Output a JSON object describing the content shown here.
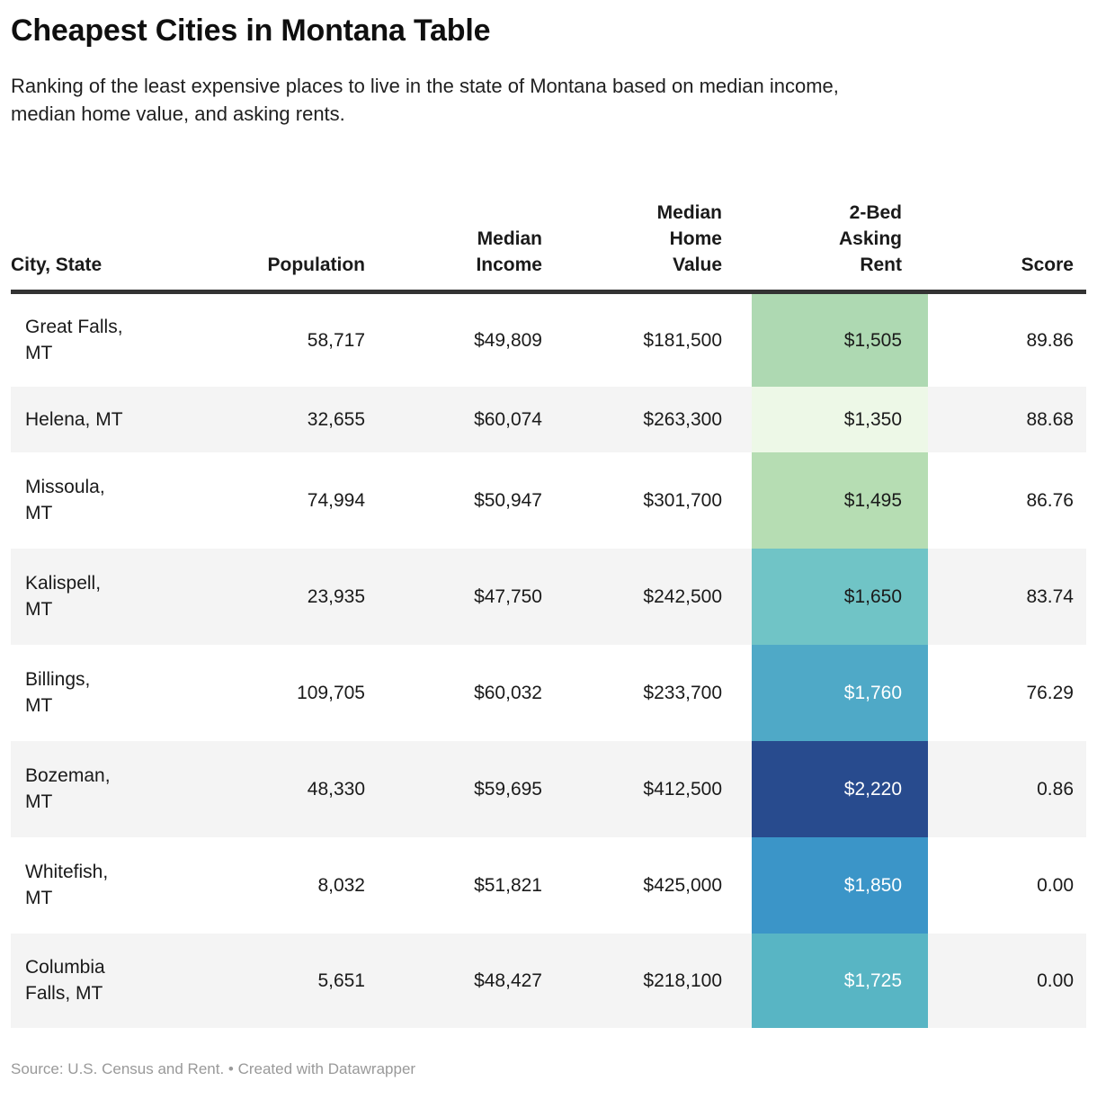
{
  "header": {
    "title": "Cheapest Cities in Montana Table",
    "subtitle": "Ranking of the least expensive places to live in the state of Montana based on median income,\nmedian home value, and asking rents."
  },
  "table": {
    "columns": {
      "city": "City, State",
      "population": "Population",
      "income": "Median\nIncome",
      "home_value": "Median\nHome\nValue",
      "rent": "2-Bed\nAsking\nRent",
      "score": "Score"
    },
    "rows": [
      {
        "city": "Great Falls,\nMT",
        "population": "58,717",
        "income": "$49,809",
        "home_value": "$181,500",
        "rent": "$1,505",
        "score": "89.86",
        "rent_bg": "#aed9b2",
        "rent_text": "#1a1a1a"
      },
      {
        "city": "Helena, MT",
        "population": "32,655",
        "income": "$60,074",
        "home_value": "$263,300",
        "rent": "$1,350",
        "score": "88.68",
        "rent_bg": "#edf8e7",
        "rent_text": "#1a1a1a"
      },
      {
        "city": "Missoula,\nMT",
        "population": "74,994",
        "income": "$50,947",
        "home_value": "$301,700",
        "rent": "$1,495",
        "score": "86.76",
        "rent_bg": "#b6ddb3",
        "rent_text": "#1a1a1a"
      },
      {
        "city": "Kalispell,\nMT",
        "population": "23,935",
        "income": "$47,750",
        "home_value": "$242,500",
        "rent": "$1,650",
        "score": "83.74",
        "rent_bg": "#70c4c6",
        "rent_text": "#1a1a1a"
      },
      {
        "city": "Billings,\nMT",
        "population": "109,705",
        "income": "$60,032",
        "home_value": "$233,700",
        "rent": "$1,760",
        "score": "76.29",
        "rent_bg": "#4fa9c7",
        "rent_text": "#ffffff"
      },
      {
        "city": "Bozeman,\nMT",
        "population": "48,330",
        "income": "$59,695",
        "home_value": "$412,500",
        "rent": "$2,220",
        "score": "0.86",
        "rent_bg": "#284b8e",
        "rent_text": "#ffffff"
      },
      {
        "city": "Whitefish,\nMT",
        "population": "8,032",
        "income": "$51,821",
        "home_value": "$425,000",
        "rent": "$1,850",
        "score": "0.00",
        "rent_bg": "#3b95c8",
        "rent_text": "#ffffff"
      },
      {
        "city": "Columbia\nFalls, MT",
        "population": "5,651",
        "income": "$48,427",
        "home_value": "$218,100",
        "rent": "$1,725",
        "score": "0.00",
        "rent_bg": "#58b5c4",
        "rent_text": "#ffffff"
      }
    ]
  },
  "footer": {
    "source": "Source: U.S. Census and Rent. • Created with Datawrapper"
  },
  "colors": {
    "header_rule": "#333333",
    "row_stripe": "#f4f4f4",
    "body_text": "#1a1a1a",
    "footer_text": "#999999"
  },
  "chart_data": {
    "type": "table",
    "title": "Cheapest Cities in Montana Table",
    "subtitle": "Ranking of the least expensive places to live in the state of Montana based on median income, median home value, and asking rents.",
    "columns": [
      "City, State",
      "Population",
      "Median Income",
      "Median Home Value",
      "2-Bed Asking Rent",
      "Score"
    ],
    "rows": [
      {
        "city": "Great Falls, MT",
        "population": 58717,
        "median_income": 49809,
        "median_home_value": 181500,
        "rent_2bed": 1505,
        "score": 89.86
      },
      {
        "city": "Helena, MT",
        "population": 32655,
        "median_income": 60074,
        "median_home_value": 263300,
        "rent_2bed": 1350,
        "score": 88.68
      },
      {
        "city": "Missoula, MT",
        "population": 74994,
        "median_income": 50947,
        "median_home_value": 301700,
        "rent_2bed": 1495,
        "score": 86.76
      },
      {
        "city": "Kalispell, MT",
        "population": 23935,
        "median_income": 47750,
        "median_home_value": 242500,
        "rent_2bed": 1650,
        "score": 83.74
      },
      {
        "city": "Billings, MT",
        "population": 109705,
        "median_income": 60032,
        "median_home_value": 233700,
        "rent_2bed": 1760,
        "score": 76.29
      },
      {
        "city": "Bozeman, MT",
        "population": 48330,
        "median_income": 59695,
        "median_home_value": 412500,
        "rent_2bed": 2220,
        "score": 0.86
      },
      {
        "city": "Whitefish, MT",
        "population": 8032,
        "median_income": 51821,
        "median_home_value": 425000,
        "rent_2bed": 1850,
        "score": 0.0
      },
      {
        "city": "Columbia Falls, MT",
        "population": 5651,
        "median_income": 48427,
        "median_home_value": 218100,
        "rent_2bed": 1725,
        "score": 0.0
      }
    ],
    "heatmap_column": "2-Bed Asking Rent",
    "heatmap_scale": "green-to-navy sequential (low rent = light green, high rent = dark blue)",
    "source_note": "Source: U.S. Census and Rent. • Created with Datawrapper"
  }
}
